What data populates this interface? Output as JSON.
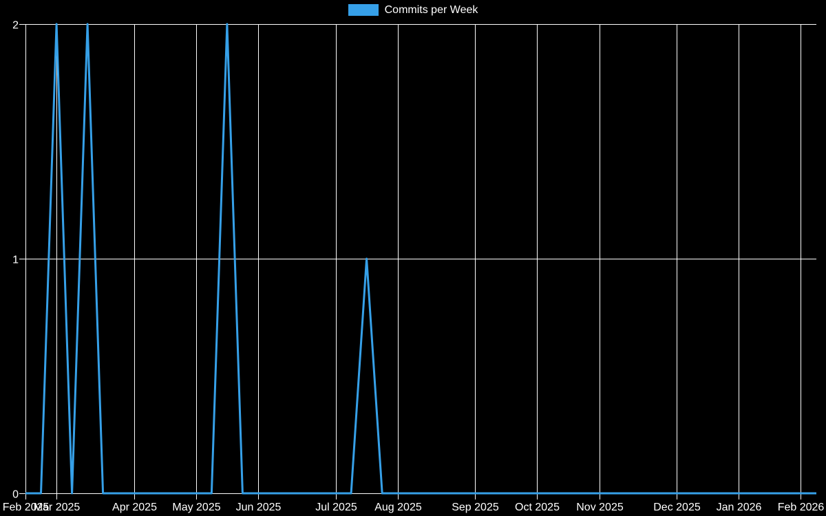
{
  "chart": {
    "legend": {
      "label": "Commits per Week"
    },
    "colors": {
      "background": "#000000",
      "line": "#36a0e8",
      "grid": "#ffffff",
      "text": "#ffffff"
    },
    "y_axis": {
      "tick_labels": [
        "0",
        "1",
        "2"
      ],
      "tick_values": [
        0,
        1,
        2
      ],
      "min": 0,
      "max": 2
    },
    "x_axis": {
      "tick_labels": [
        "Feb 2025",
        "Mar 2025",
        "Apr 2025",
        "May 2025",
        "Jun 2025",
        "Jul 2025",
        "Aug 2025",
        "Sep 2025",
        "Oct 2025",
        "Nov 2025",
        "Dec 2025",
        "Jan 2026",
        "Feb 2026"
      ],
      "tick_week_indices": [
        0,
        2,
        7,
        11,
        15,
        20,
        24,
        29,
        33,
        37,
        42,
        46,
        50
      ]
    }
  },
  "chart_data": {
    "type": "line",
    "title": "Commits per Week",
    "xlabel": "",
    "ylabel": "",
    "x_unit": "week",
    "x_range_labels": [
      "Feb 2025",
      "Feb 2026"
    ],
    "ylim": [
      0,
      2
    ],
    "grid": true,
    "legend_position": "top-center",
    "series": [
      {
        "name": "Commits per Week",
        "values": [
          0,
          0,
          2,
          0,
          2,
          0,
          0,
          0,
          0,
          0,
          0,
          0,
          0,
          2,
          0,
          0,
          0,
          0,
          0,
          0,
          0,
          0,
          1,
          0,
          0,
          0,
          0,
          0,
          0,
          0,
          0,
          0,
          0,
          0,
          0,
          0,
          0,
          0,
          0,
          0,
          0,
          0,
          0,
          0,
          0,
          0,
          0,
          0,
          0,
          0,
          0,
          0
        ]
      }
    ],
    "nonzero_points": [
      {
        "week_index": 2,
        "approx_period": "early Mar 2025",
        "value": 2
      },
      {
        "week_index": 4,
        "approx_period": "mid Mar 2025",
        "value": 2
      },
      {
        "week_index": 13,
        "approx_period": "mid May 2025",
        "value": 2
      },
      {
        "week_index": 22,
        "approx_period": "mid Jul 2025",
        "value": 1
      }
    ]
  }
}
